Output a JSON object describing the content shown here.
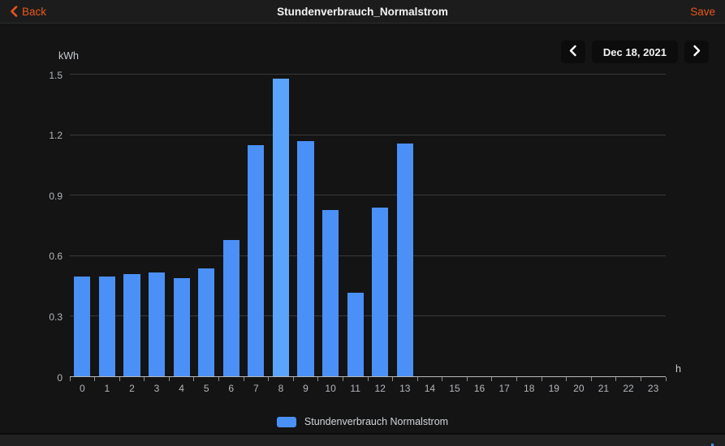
{
  "header": {
    "back_label": "Back",
    "title": "Stundenverbrauch_Normalstrom",
    "save_label": "Save"
  },
  "date_nav": {
    "prev_icon": "chevron-left-icon",
    "date_label": "Dec 18, 2021",
    "next_icon": "chevron-right-icon"
  },
  "chart_data": {
    "type": "bar",
    "title": "Stundenverbrauch_Normalstrom",
    "ylabel": "kWh",
    "xlabel": "h",
    "ylim": [
      0,
      1.5
    ],
    "yticks": [
      0,
      0.3,
      0.6,
      0.9,
      1.2,
      1.5
    ],
    "ytick_labels": [
      "0",
      "0.3",
      "0.6",
      "0.9",
      "1.2",
      "1.5"
    ],
    "categories": [
      "0",
      "1",
      "2",
      "3",
      "4",
      "5",
      "6",
      "7",
      "8",
      "9",
      "10",
      "11",
      "12",
      "13",
      "14",
      "15",
      "16",
      "17",
      "18",
      "19",
      "20",
      "21",
      "22",
      "23"
    ],
    "values": [
      0.5,
      0.5,
      0.51,
      0.52,
      0.49,
      0.54,
      0.68,
      1.15,
      1.48,
      1.17,
      0.83,
      0.42,
      0.84,
      1.16,
      0,
      0,
      0,
      0,
      0,
      0,
      0,
      0,
      0,
      0
    ],
    "highlighted_index": 8,
    "grid": true,
    "legend_position": "bottom",
    "legend": [
      "Stundenverbrauch Normalstrom"
    ]
  },
  "legend": {
    "label": "Stundenverbrauch Normalstrom"
  },
  "colors": {
    "bar": "#4a90f7",
    "bar_highlight": "#5ba4fb",
    "accent_orange": "#e8571d",
    "grid": "#3a3a3a",
    "axis": "#b9b9b9",
    "topbar_bg": "#1c1c1c",
    "panel_bg": "#141414",
    "footer_bg": "#212121"
  },
  "footer": {
    "icon": "chart-tab-icon"
  }
}
